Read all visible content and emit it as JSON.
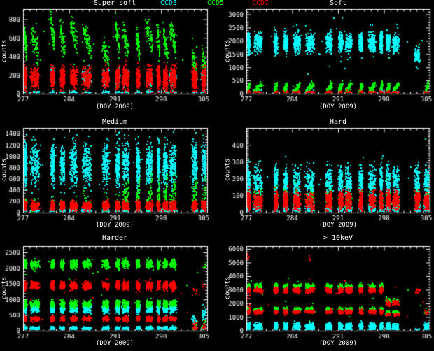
{
  "app": {
    "background": "#000000",
    "axis_color": "#ffffff",
    "text_color": "#ffffff"
  },
  "legend": {
    "items": [
      {
        "label": "CCD3",
        "color": "#00ffff"
      },
      {
        "label": "CCD5",
        "color": "#00ff00"
      },
      {
        "label": "CCD7",
        "color": "#ff0000"
      }
    ]
  },
  "clusters": {
    "x": [
      277.25,
      278.7,
      281.4,
      282.9,
      284.6,
      286.6,
      289.5,
      291.3,
      292.5,
      294.4,
      296.1,
      297.5,
      298.55,
      299.7,
      303.0,
      304.5
    ],
    "w": [
      0.2,
      0.6,
      0.25,
      0.3,
      0.5,
      0.6,
      0.45,
      0.3,
      0.45,
      0.25,
      0.45,
      0.2,
      0.3,
      0.45,
      0.35,
      0.4
    ]
  },
  "chart_data": [
    {
      "type": "scatter",
      "title": "Super soft",
      "xlabel": "(DOY 2009)",
      "ylabel": "counts",
      "xlim": [
        277,
        305
      ],
      "xticks": [
        277,
        284,
        291,
        298,
        305
      ],
      "x_minor": 1,
      "ylim": [
        0,
        910
      ],
      "yticks": [
        0,
        200,
        400,
        600,
        800
      ],
      "y_minor": 50,
      "grid": false,
      "series": [
        {
          "name": "CCD3",
          "color": "#00ffff",
          "bands": [
            {
              "y": 185,
              "sd": 45,
              "n": 80,
              "only": [
                0,
                2,
                5,
                6,
                7,
                8,
                10,
                13,
                15
              ]
            },
            {
              "y": 12,
              "sd": 9,
              "n": 90
            }
          ]
        },
        {
          "name": "CCD5",
          "color": "#00ff00",
          "bands": [
            {
              "y": [
                560,
                540,
                670,
                600,
                650,
                580,
                430,
                600,
                580,
                530,
                640,
                580,
                540,
                610,
                300,
                290
              ],
              "sd": 60,
              "n": 65,
              "trend": -110
            }
          ],
          "stray": {
            "n": 22,
            "y": 520,
            "sd": 160
          }
        },
        {
          "name": "CCD7",
          "color": "#ff0000",
          "bands": [
            {
              "y": 180,
              "sd": 55,
              "n": 170
            },
            {
              "y": 60,
              "sd": 50,
              "n": 25,
              "only": [
                8,
                12,
                13,
                14,
                15
              ]
            }
          ]
        }
      ],
      "outliers": []
    },
    {
      "type": "scatter",
      "title": "Soft",
      "xlabel": "(DOY 2009)",
      "ylabel": "counts",
      "xlim": [
        277,
        305
      ],
      "xticks": [
        277,
        284,
        291,
        298,
        305
      ],
      "x_minor": 1,
      "ylim": [
        0,
        3200
      ],
      "yticks": [
        0,
        500,
        1000,
        1500,
        2000,
        2500,
        3000
      ],
      "y_minor": 100,
      "grid": false,
      "series": [
        {
          "name": "CCD3",
          "color": "#00ffff",
          "bands": [
            {
              "y": 1950,
              "sd": 190,
              "n": 150,
              "skip": [
                14,
                15
              ]
            },
            {
              "y": 1500,
              "sd": 130,
              "n": 90,
              "only": [
                14
              ]
            },
            {
              "y": 60,
              "sd": 40,
              "n": 40,
              "only": [
                1,
                3,
                5,
                7,
                9,
                11,
                13,
                15
              ]
            }
          ],
          "stray": {
            "n": 18,
            "y": 2000,
            "sd": 420
          }
        },
        {
          "name": "CCD5",
          "color": "#00ff00",
          "bands": [
            {
              "y": 240,
              "sd": 70,
              "n": 55,
              "trend": 160,
              "skip": [
                14
              ]
            }
          ]
        },
        {
          "name": "CCD7",
          "color": "#ff0000",
          "bands": [
            {
              "y": 45,
              "sd": 30,
              "n": 130,
              "skip": [
                14
              ]
            }
          ]
        }
      ],
      "outliers": [
        {
          "color": "#00ffff",
          "x": 291.55,
          "y": 2880
        },
        {
          "color": "#00ffff",
          "x": 299.9,
          "y": 2650
        },
        {
          "color": "#00ffff",
          "x": 284.1,
          "y": 2560
        },
        {
          "color": "#00ffff",
          "x": 286.0,
          "y": 2600
        },
        {
          "color": "#00ffff",
          "x": 289.6,
          "y": 1050
        },
        {
          "color": "#00ffff",
          "x": 292.0,
          "y": 980
        },
        {
          "color": "#00ffff",
          "x": 286.3,
          "y": 760
        }
      ]
    },
    {
      "type": "scatter",
      "title": "Medium",
      "xlabel": "(DOY 2009)",
      "ylabel": "counts",
      "xlim": [
        277,
        305
      ],
      "xticks": [
        277,
        284,
        291,
        298,
        305
      ],
      "x_minor": 1,
      "ylim": [
        0,
        1500
      ],
      "yticks": [
        0,
        200,
        400,
        600,
        800,
        1000,
        1200,
        1400
      ],
      "y_minor": 50,
      "grid": false,
      "series": [
        {
          "name": "CCD3",
          "color": "#00ffff",
          "bands": [
            {
              "y": 860,
              "sd": 185,
              "n": 160
            },
            {
              "y": 45,
              "sd": 16,
              "n": 70
            }
          ],
          "stray": {
            "n": 16,
            "y": 900,
            "sd": 260
          }
        },
        {
          "name": "CCD5",
          "color": "#00ff00",
          "bands": [
            {
              "y": 170,
              "sd": 70,
              "n": 12,
              "skip": [
                8,
                9,
                10,
                11,
                12,
                13,
                14,
                15
              ]
            },
            {
              "y": 300,
              "sd": 120,
              "n": 45,
              "trend": 170,
              "only": [
                8,
                9,
                10,
                11,
                12,
                13,
                14,
                15
              ]
            }
          ]
        },
        {
          "name": "CCD7",
          "color": "#ff0000",
          "bands": [
            {
              "y": 130,
              "sd": 38,
              "n": 150
            }
          ]
        }
      ],
      "outliers": [
        {
          "color": "#00ffff",
          "x": 299.8,
          "y": 1440
        },
        {
          "color": "#00ffff",
          "x": 292.3,
          "y": 1390
        },
        {
          "color": "#00ffff",
          "x": 281.6,
          "y": 1320
        },
        {
          "color": "#00ffff",
          "x": 296.2,
          "y": 1350
        }
      ]
    },
    {
      "type": "scatter",
      "title": "Hard",
      "xlabel": "(DOY 2009)",
      "ylabel": "counts",
      "xlim": [
        277,
        305
      ],
      "xticks": [
        277,
        284,
        291,
        298,
        305
      ],
      "x_minor": 1,
      "ylim": [
        0,
        500
      ],
      "yticks": [
        0,
        100,
        200,
        300,
        400
      ],
      "y_minor": 10,
      "grid": false,
      "series": [
        {
          "name": "CCD3",
          "color": "#00ffff",
          "bands": [
            {
              "y": 180,
              "sd": 48,
              "n": 130
            },
            {
              "y": 28,
              "sd": 13,
              "n": 80
            }
          ],
          "stray": {
            "n": 18,
            "y": 220,
            "sd": 60
          }
        },
        {
          "name": "CCD5",
          "color": "#00ff00",
          "bands": [
            {
              "y": 85,
              "sd": 32,
              "n": 22
            }
          ]
        },
        {
          "name": "CCD7",
          "color": "#ff0000",
          "bands": [
            {
              "y": 72,
              "sd": 28,
              "n": 150
            }
          ]
        }
      ],
      "outliers": [
        {
          "color": "#00ffff",
          "x": 304.3,
          "y": 440
        },
        {
          "color": "#00ffff",
          "x": 296.5,
          "y": 305
        },
        {
          "color": "#00ffff",
          "x": 286.2,
          "y": 300
        }
      ]
    },
    {
      "type": "scatter",
      "title": "Harder",
      "xlabel": "(DOY 2009)",
      "ylabel": "counts",
      "xlim": [
        277,
        305
      ],
      "xticks": [
        277,
        284,
        291,
        298,
        305
      ],
      "x_minor": 1,
      "ylim": [
        0,
        2700
      ],
      "yticks": [
        0,
        500,
        1000,
        1500,
        2000,
        2500
      ],
      "y_minor": 100,
      "grid": false,
      "series": [
        {
          "name": "CCD3",
          "color": "#00ffff",
          "bands": [
            {
              "y": 720,
              "sd": 62,
              "n": 105,
              "skip": [
                14,
                15
              ]
            },
            {
              "y": 95,
              "sd": 28,
              "n": 90,
              "skip": [
                14
              ]
            },
            {
              "y": 350,
              "sd": 100,
              "n": 18,
              "only": [
                14
              ]
            },
            {
              "y": 550,
              "sd": 110,
              "n": 45,
              "only": [
                15
              ]
            }
          ]
        },
        {
          "name": "CCD5",
          "color": "#00ff00",
          "bands": [
            {
              "y": 2150,
              "sd": 70,
              "n": 85,
              "skip": [
                14,
                15
              ]
            },
            {
              "y": 880,
              "sd": 55,
              "n": 70,
              "skip": [
                14,
                15
              ]
            },
            {
              "y": 250,
              "sd": 120,
              "n": 14,
              "only": [
                14
              ]
            },
            {
              "y": 2100,
              "sd": 70,
              "n": 12,
              "only": [
                15
              ]
            },
            {
              "y": 200,
              "sd": 100,
              "n": 10,
              "only": [
                15
              ]
            }
          ],
          "stray": {
            "n": 14,
            "y": 1600,
            "sd": 500
          }
        },
        {
          "name": "CCD7",
          "color": "#ff0000",
          "bands": [
            {
              "y": 1460,
              "sd": 65,
              "n": 100,
              "skip": [
                14,
                15
              ]
            },
            {
              "y": 400,
              "sd": 38,
              "n": 70,
              "skip": [
                14,
                15
              ]
            },
            {
              "y": 150,
              "sd": 90,
              "n": 22,
              "only": [
                14,
                15
              ]
            },
            {
              "y": 1250,
              "sd": 60,
              "n": 8,
              "only": [
                14
              ]
            },
            {
              "y": 1430,
              "sd": 60,
              "n": 12,
              "only": [
                15
              ]
            }
          ],
          "stray": {
            "n": 10,
            "y": 900,
            "sd": 450
          }
        }
      ],
      "outliers": []
    },
    {
      "type": "scatter",
      "title": "> 10keV",
      "xlabel": "(DOY 2009)",
      "ylabel": "counts",
      "xlim": [
        277,
        305
      ],
      "xticks": [
        277,
        284,
        291,
        298,
        305
      ],
      "x_minor": 1,
      "ylim": [
        0,
        6200
      ],
      "yticks": [
        0,
        1000,
        2000,
        3000,
        4000,
        5000,
        6000
      ],
      "y_minor": 200,
      "grid": false,
      "series": [
        {
          "name": "CCD3",
          "color": "#00ffff",
          "bands": [
            {
              "y": 380,
              "sd": 130,
              "n": 80,
              "skip": [
                14
              ]
            },
            {
              "y": 90,
              "sd": 45,
              "n": 50
            }
          ]
        },
        {
          "name": "CCD5",
          "color": "#00ff00",
          "bands": [
            {
              "y": 3280,
              "sd": 95,
              "n": 75,
              "skip": [
                12,
                13,
                14,
                15
              ]
            },
            {
              "y": 1620,
              "sd": 70,
              "n": 55,
              "skip": [
                12,
                13,
                14,
                15
              ]
            },
            {
              "y": 2270,
              "sd": 80,
              "n": 40,
              "only": [
                12,
                13
              ]
            },
            {
              "y": 1400,
              "sd": 70,
              "n": 30,
              "only": [
                12,
                13
              ]
            },
            {
              "y": 1500,
              "sd": 80,
              "n": 12,
              "only": [
                15
              ]
            }
          ],
          "stray": {
            "n": 12,
            "y": 2500,
            "sd": 700
          }
        },
        {
          "name": "CCD7",
          "color": "#ff0000",
          "bands": [
            {
              "y": 3010,
              "sd": 90,
              "n": 95,
              "skip": [
                12,
                13,
                14,
                15
              ]
            },
            {
              "y": 1430,
              "sd": 70,
              "n": 75,
              "skip": [
                12,
                13,
                14,
                15
              ]
            },
            {
              "y": 2060,
              "sd": 80,
              "n": 45,
              "only": [
                12,
                13
              ]
            },
            {
              "y": 1230,
              "sd": 70,
              "n": 35,
              "only": [
                12,
                13
              ]
            },
            {
              "y": 2980,
              "sd": 90,
              "n": 20,
              "only": [
                14
              ]
            },
            {
              "y": 1450,
              "sd": 90,
              "n": 14,
              "only": [
                15
              ]
            },
            {
              "y": 5480,
              "sd": 180,
              "n": 7,
              "only": [
                0
              ]
            },
            {
              "y": 2150,
              "sd": 260,
              "n": 9,
              "only": [
                0
              ]
            }
          ],
          "stray": {
            "n": 8,
            "y": 2200,
            "sd": 900
          }
        }
      ],
      "outliers": [
        {
          "color": "#ff0000",
          "x": 286.5,
          "y": 5560
        },
        {
          "color": "#ff0000",
          "x": 286.55,
          "y": 5380
        },
        {
          "color": "#ff0000",
          "x": 286.6,
          "y": 5210
        },
        {
          "color": "#ff0000",
          "x": 286.5,
          "y": 3790
        }
      ]
    }
  ]
}
